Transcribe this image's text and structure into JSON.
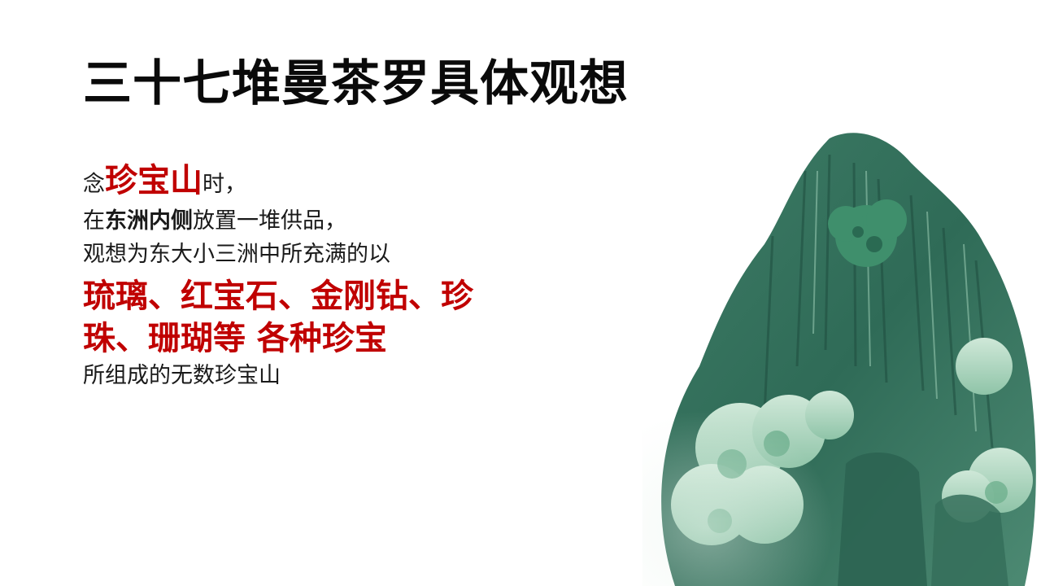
{
  "title": "三十七堆曼茶罗具体观想",
  "lines": {
    "l1_prefix": "念",
    "l1_highlight": "珍宝山",
    "l1_suffix": "时，",
    "l2_prefix": "在",
    "l2_bold": "东洲内侧",
    "l2_suffix": "放置一堆供品，",
    "l3": "观想为东大小三洲中所充满的以",
    "gems_line1": "琉璃、红宝石、金刚钻、珍",
    "gems_line2": "珠、珊瑚等 各种珍宝",
    "l6": "所组成的无数珍宝山"
  },
  "colors": {
    "highlight": "#c00000",
    "title": "#0a0a0a",
    "text": "#1a1a1a",
    "jade_dark": "#2f6b57",
    "jade_light": "#9fd2b8"
  }
}
